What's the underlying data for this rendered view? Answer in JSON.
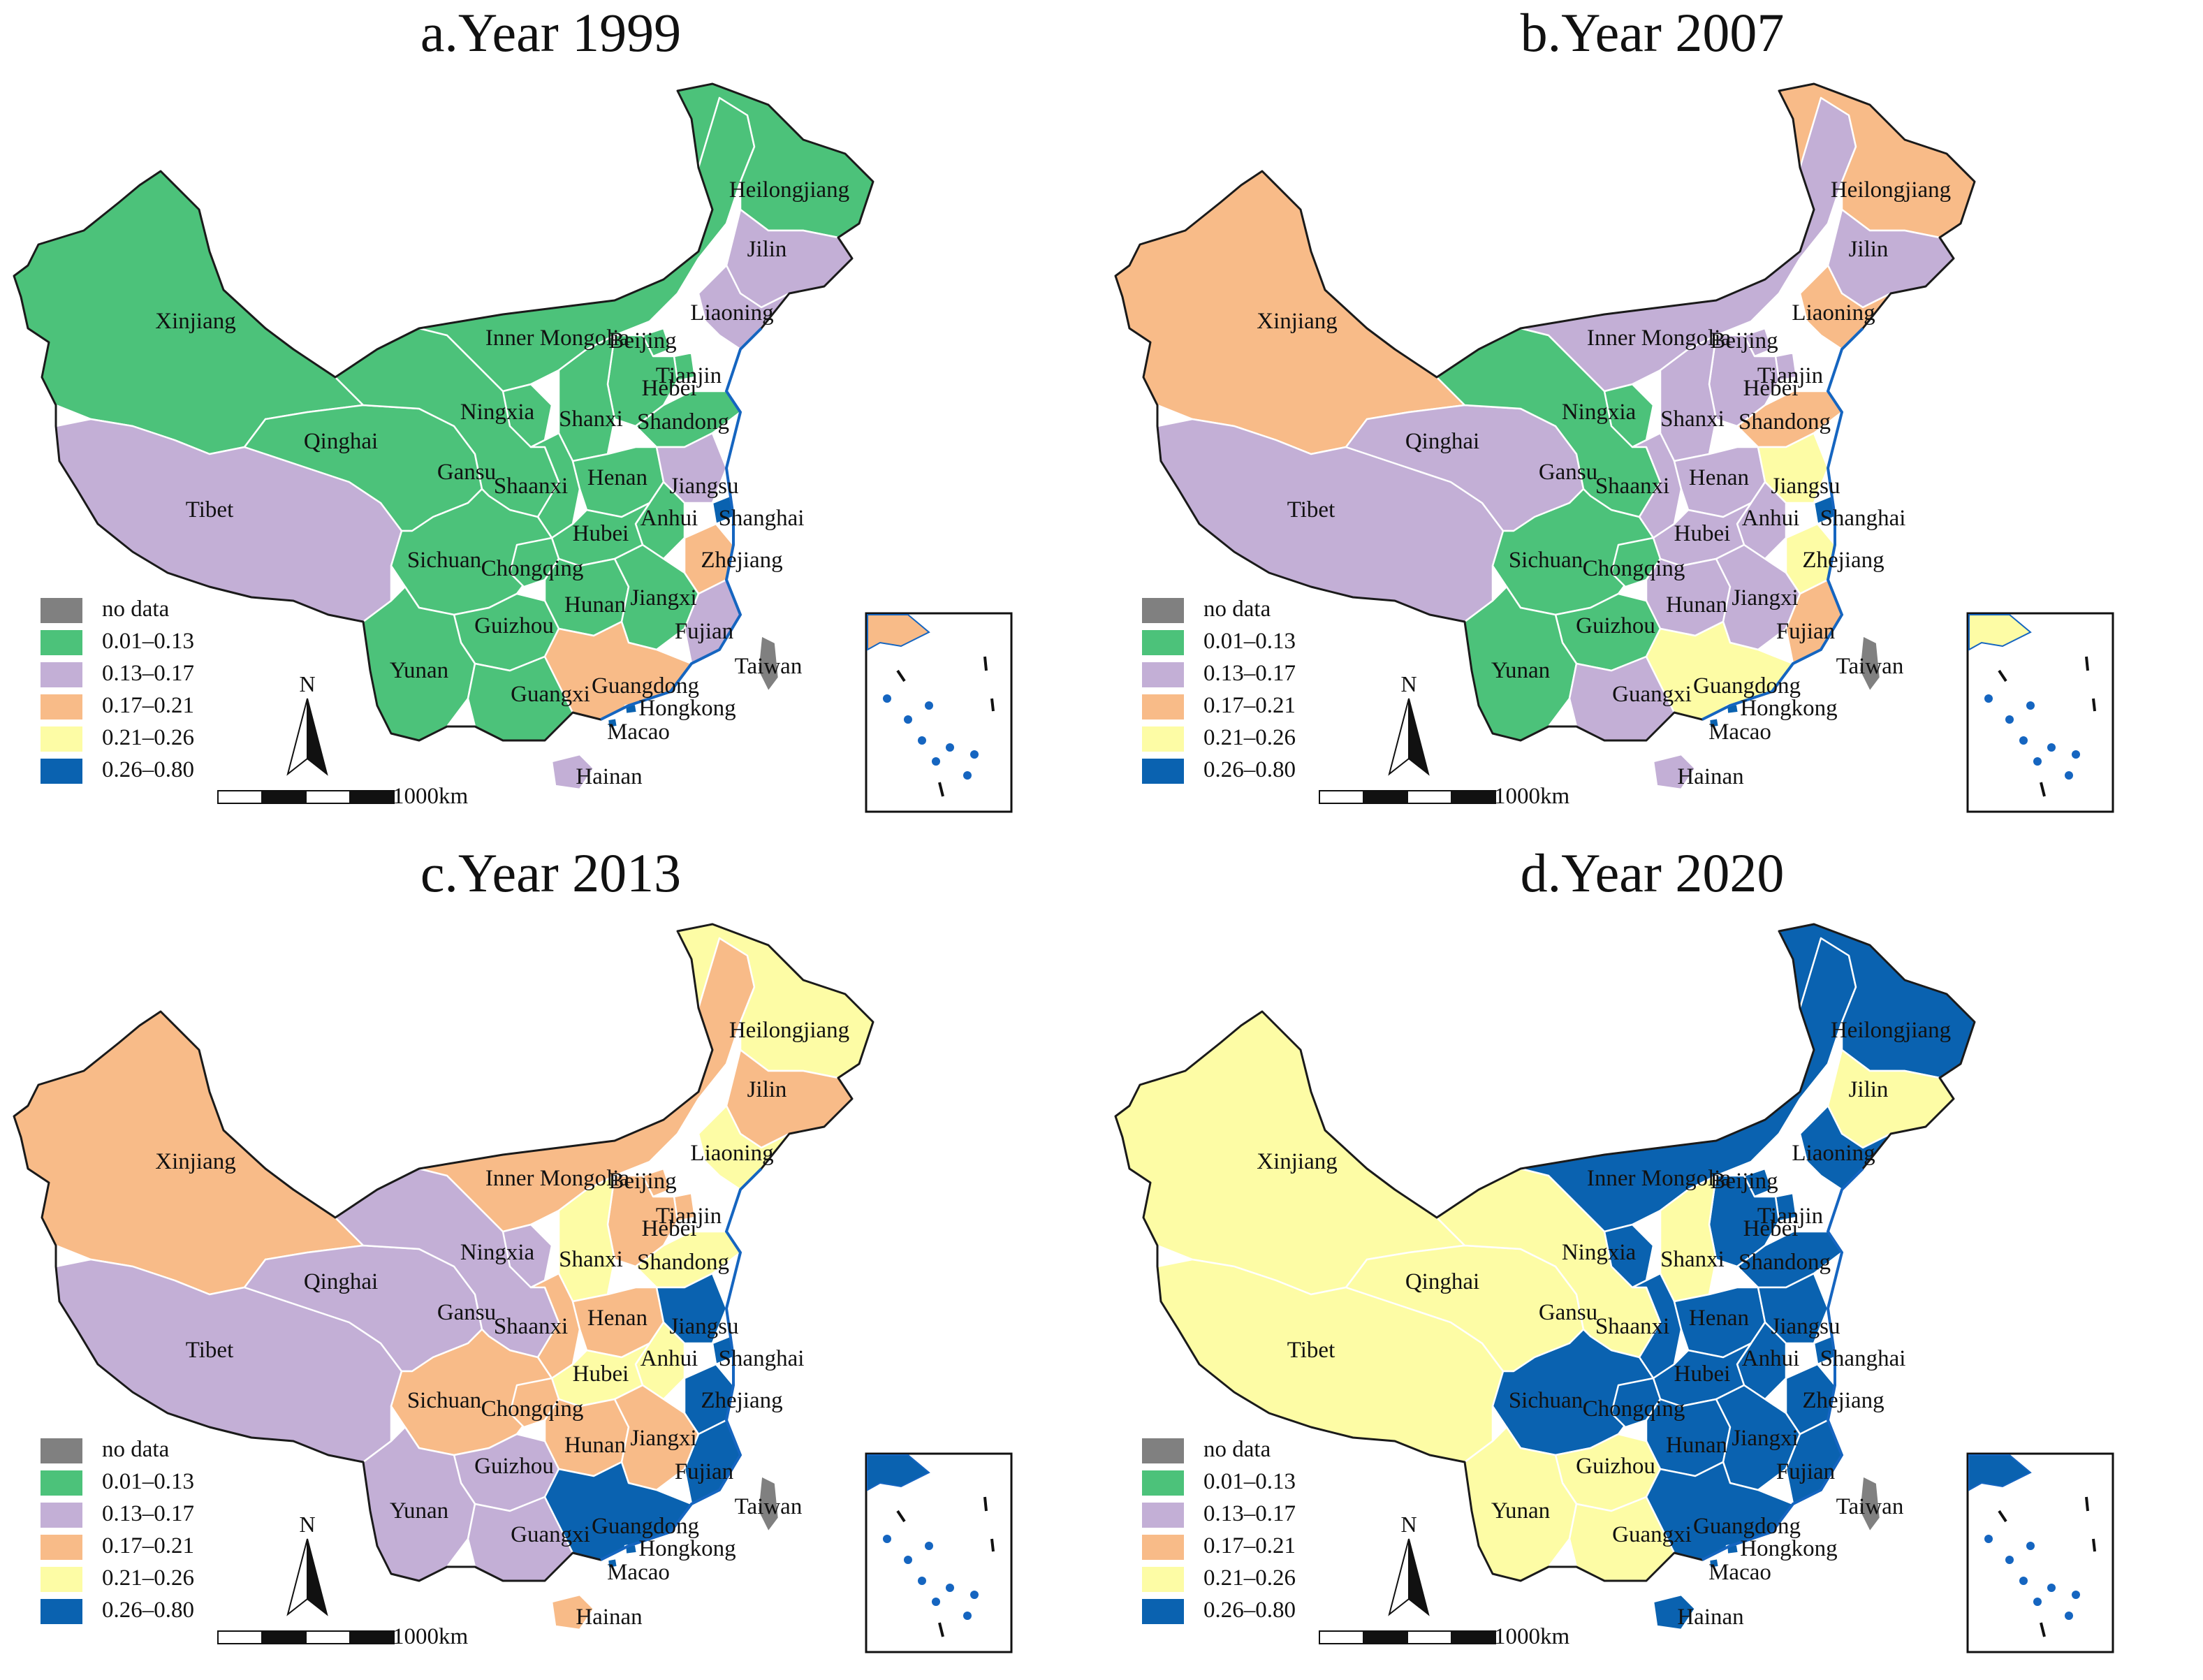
{
  "legend": {
    "classes": [
      {
        "label": "no data",
        "color": "#808080"
      },
      {
        "label": "0.01–0.13",
        "color": "#4cc27a"
      },
      {
        "label": "0.13–0.17",
        "color": "#c3afd6"
      },
      {
        "label": "0.17–0.21",
        "color": "#f8bb88"
      },
      {
        "label": "0.21–0.26",
        "color": "#fdfca5"
      },
      {
        "label": "0.26–0.80",
        "color": "#0a62b0"
      }
    ]
  },
  "scale_bar": {
    "label": "1000km"
  },
  "north_arrow": {
    "label": "N"
  },
  "region_labels": {
    "xinjiang": "Xinjiang",
    "tibet": "Tibet",
    "qinghai": "Qinghai",
    "gansu": "Gansu",
    "ningxia": "Ningxia",
    "inner_mongolia": "Inner Mongolia",
    "heilongjiang": "Heilongjiang",
    "jilin": "Jilin",
    "liaoning": "Liaoning",
    "beijing": "Beijing",
    "tianjin": "Tianjin",
    "hebei": "Hebei",
    "shanxi": "Shanxi",
    "shandong": "Shandong",
    "shaanxi": "Shaanxi",
    "henan": "Henan",
    "jiangsu": "Jiangsu",
    "anhui": "Anhui",
    "shanghai": "Shanghai",
    "hubei": "Hubei",
    "sichuan": "Sichuan",
    "chongqing": "Chongqing",
    "zhejiang": "Zhejiang",
    "hunan": "Hunan",
    "jiangxi": "Jiangxi",
    "guizhou": "Guizhou",
    "fujian": "Fujian",
    "yunan": "Yunan",
    "guangxi": "Guangxi",
    "guangdong": "Guangdong",
    "taiwan": "Taiwan",
    "hongkong": "Hongkong",
    "macao": "Macao",
    "hainan": "Hainan"
  },
  "panels": [
    {
      "title": "a.Year 1999",
      "values": {
        "xinjiang": 1,
        "tibet": 2,
        "qinghai": 1,
        "gansu": 1,
        "ningxia": 1,
        "inner_mongolia": 1,
        "heilongjiang": 1,
        "jilin": 2,
        "liaoning": 2,
        "beijing": 1,
        "tianjin": 1,
        "hebei": 1,
        "shanxi": 1,
        "shandong": 1,
        "shaanxi": 1,
        "henan": 1,
        "jiangsu": 2,
        "anhui": 1,
        "shanghai": 5,
        "hubei": 1,
        "sichuan": 1,
        "chongqing": 1,
        "zhejiang": 3,
        "hunan": 1,
        "jiangxi": 1,
        "guizhou": 1,
        "fujian": 2,
        "yunan": 1,
        "guangxi": 1,
        "guangdong": 3,
        "taiwan": 0,
        "hongkong": 5,
        "macao": 5,
        "hainan": 2
      }
    },
    {
      "title": "b.Year 2007",
      "values": {
        "xinjiang": 3,
        "tibet": 2,
        "qinghai": 2,
        "gansu": 1,
        "ningxia": 1,
        "inner_mongolia": 2,
        "heilongjiang": 3,
        "jilin": 2,
        "liaoning": 3,
        "beijing": 2,
        "tianjin": 2,
        "hebei": 2,
        "shanxi": 2,
        "shandong": 3,
        "shaanxi": 2,
        "henan": 2,
        "jiangsu": 4,
        "anhui": 2,
        "shanghai": 5,
        "hubei": 2,
        "sichuan": 1,
        "chongqing": 1,
        "zhejiang": 4,
        "hunan": 2,
        "jiangxi": 2,
        "guizhou": 1,
        "fujian": 3,
        "yunan": 1,
        "guangxi": 2,
        "guangdong": 4,
        "taiwan": 0,
        "hongkong": 5,
        "macao": 5,
        "hainan": 2
      }
    },
    {
      "title": "c.Year 2013",
      "values": {
        "xinjiang": 3,
        "tibet": 2,
        "qinghai": 2,
        "gansu": 2,
        "ningxia": 2,
        "inner_mongolia": 3,
        "heilongjiang": 4,
        "jilin": 3,
        "liaoning": 4,
        "beijing": 3,
        "tianjin": 3,
        "hebei": 3,
        "shanxi": 4,
        "shandong": 4,
        "shaanxi": 3,
        "henan": 3,
        "jiangsu": 5,
        "anhui": 4,
        "shanghai": 5,
        "hubei": 4,
        "sichuan": 3,
        "chongqing": 3,
        "zhejiang": 5,
        "hunan": 3,
        "jiangxi": 3,
        "guizhou": 2,
        "fujian": 5,
        "yunan": 2,
        "guangxi": 2,
        "guangdong": 5,
        "taiwan": 0,
        "hongkong": 5,
        "macao": 5,
        "hainan": 3
      }
    },
    {
      "title": "d.Year 2020",
      "values": {
        "xinjiang": 4,
        "tibet": 4,
        "qinghai": 4,
        "gansu": 4,
        "ningxia": 5,
        "inner_mongolia": 5,
        "heilongjiang": 5,
        "jilin": 4,
        "liaoning": 5,
        "beijing": 5,
        "tianjin": 5,
        "hebei": 5,
        "shanxi": 4,
        "shandong": 5,
        "shaanxi": 5,
        "henan": 5,
        "jiangsu": 5,
        "anhui": 5,
        "shanghai": 5,
        "hubei": 5,
        "sichuan": 5,
        "chongqing": 5,
        "zhejiang": 5,
        "hunan": 5,
        "jiangxi": 5,
        "guizhou": 4,
        "fujian": 5,
        "yunan": 4,
        "guangxi": 4,
        "guangdong": 5,
        "taiwan": 0,
        "hongkong": 5,
        "macao": 5,
        "hainan": 5
      }
    }
  ]
}
